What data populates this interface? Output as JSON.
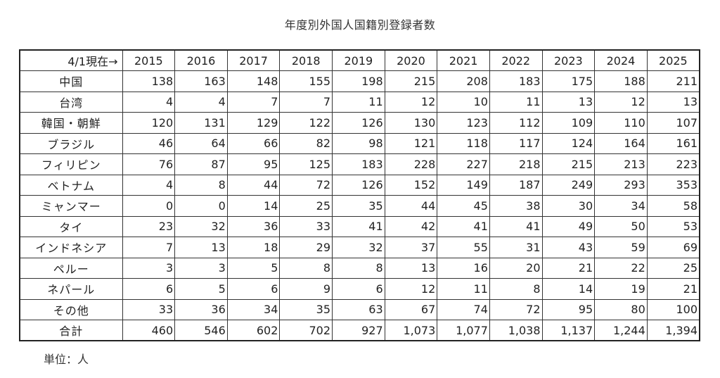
{
  "title": "年度別外国人国籍別登録者数",
  "table": {
    "corner_header": "4/1現在→",
    "years": [
      "2015",
      "2016",
      "2017",
      "2018",
      "2019",
      "2020",
      "2021",
      "2022",
      "2023",
      "2024",
      "2025"
    ],
    "rows": [
      {
        "name": "中国",
        "values": [
          "138",
          "163",
          "148",
          "155",
          "198",
          "215",
          "208",
          "183",
          "175",
          "188",
          "211"
        ]
      },
      {
        "name": "台湾",
        "values": [
          "4",
          "4",
          "7",
          "7",
          "11",
          "12",
          "10",
          "11",
          "13",
          "12",
          "13"
        ]
      },
      {
        "name": "韓国・朝鮮",
        "values": [
          "120",
          "131",
          "129",
          "122",
          "126",
          "130",
          "123",
          "112",
          "109",
          "110",
          "107"
        ]
      },
      {
        "name": "ブラジル",
        "values": [
          "46",
          "64",
          "66",
          "82",
          "98",
          "121",
          "118",
          "117",
          "124",
          "164",
          "161"
        ]
      },
      {
        "name": "フィリピン",
        "values": [
          "76",
          "87",
          "95",
          "125",
          "183",
          "228",
          "227",
          "218",
          "215",
          "213",
          "223"
        ]
      },
      {
        "name": "ベトナム",
        "values": [
          "4",
          "8",
          "44",
          "72",
          "126",
          "152",
          "149",
          "187",
          "249",
          "293",
          "353"
        ]
      },
      {
        "name": "ミャンマー",
        "values": [
          "0",
          "0",
          "14",
          "25",
          "35",
          "44",
          "45",
          "38",
          "30",
          "34",
          "58"
        ]
      },
      {
        "name": "タイ",
        "values": [
          "23",
          "32",
          "36",
          "33",
          "41",
          "42",
          "41",
          "41",
          "49",
          "50",
          "53"
        ]
      },
      {
        "name": "インドネシア",
        "values": [
          "7",
          "13",
          "18",
          "29",
          "32",
          "37",
          "55",
          "31",
          "43",
          "59",
          "69"
        ]
      },
      {
        "name": "ペルー",
        "values": [
          "3",
          "3",
          "5",
          "8",
          "8",
          "13",
          "16",
          "20",
          "21",
          "22",
          "25"
        ]
      },
      {
        "name": "ネパール",
        "values": [
          "6",
          "5",
          "6",
          "9",
          "6",
          "12",
          "11",
          "8",
          "14",
          "19",
          "21"
        ]
      },
      {
        "name": "その他",
        "values": [
          "33",
          "36",
          "34",
          "35",
          "63",
          "67",
          "74",
          "72",
          "95",
          "80",
          "100"
        ]
      },
      {
        "name": "合計",
        "values": [
          "460",
          "546",
          "602",
          "702",
          "927",
          "1,073",
          "1,077",
          "1,038",
          "1,137",
          "1,244",
          "1,394"
        ]
      }
    ]
  },
  "unit_note": "単位：人"
}
